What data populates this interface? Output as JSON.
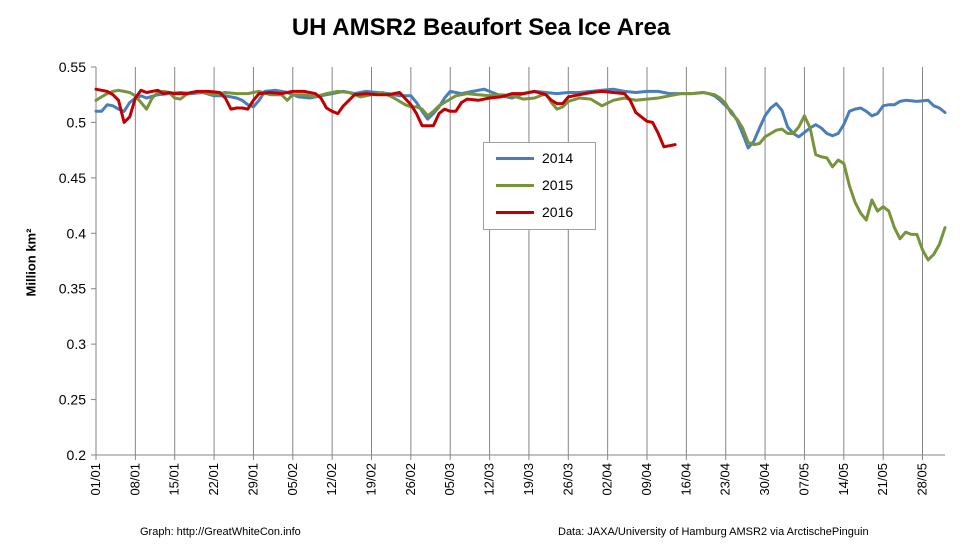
{
  "chart_data": {
    "type": "line",
    "title": "UH AMSR2 Beaufort Sea Ice Area",
    "ylabel": "Million km²",
    "xlabel": "",
    "ylim": [
      0.2,
      0.55
    ],
    "y_ticks": [
      "0.2",
      "0.25",
      "0.3",
      "0.35",
      "0.4",
      "0.45",
      "0.5",
      "0.55"
    ],
    "x_day_range": [
      1,
      152
    ],
    "x_ticks": [
      {
        "day": 1,
        "label": "01/01"
      },
      {
        "day": 8,
        "label": "08/01"
      },
      {
        "day": 15,
        "label": "15/01"
      },
      {
        "day": 22,
        "label": "22/01"
      },
      {
        "day": 29,
        "label": "29/01"
      },
      {
        "day": 36,
        "label": "05/02"
      },
      {
        "day": 43,
        "label": "12/02"
      },
      {
        "day": 50,
        "label": "19/02"
      },
      {
        "day": 57,
        "label": "26/02"
      },
      {
        "day": 64,
        "label": "05/03"
      },
      {
        "day": 71,
        "label": "12/03"
      },
      {
        "day": 78,
        "label": "19/03"
      },
      {
        "day": 85,
        "label": "26/03"
      },
      {
        "day": 92,
        "label": "02/04"
      },
      {
        "day": 99,
        "label": "09/04"
      },
      {
        "day": 106,
        "label": "16/04"
      },
      {
        "day": 113,
        "label": "23/04"
      },
      {
        "day": 120,
        "label": "30/04"
      },
      {
        "day": 127,
        "label": "07/05"
      },
      {
        "day": 134,
        "label": "14/05"
      },
      {
        "day": 141,
        "label": "21/05"
      },
      {
        "day": 148,
        "label": "28/05"
      }
    ],
    "grid": "vertical",
    "legend_position": "center",
    "series": [
      {
        "name": "2014",
        "color": "#4a7ebb",
        "points": [
          [
            1,
            0.51
          ],
          [
            2,
            0.51
          ],
          [
            3,
            0.516
          ],
          [
            4,
            0.515
          ],
          [
            5,
            0.512
          ],
          [
            6,
            0.51
          ],
          [
            7,
            0.518
          ],
          [
            8,
            0.522
          ],
          [
            9,
            0.524
          ],
          [
            10,
            0.522
          ],
          [
            12,
            0.525
          ],
          [
            14,
            0.526
          ],
          [
            16,
            0.527
          ],
          [
            18,
            0.526
          ],
          [
            20,
            0.527
          ],
          [
            22,
            0.524
          ],
          [
            24,
            0.524
          ],
          [
            26,
            0.522
          ],
          [
            27,
            0.52
          ],
          [
            28,
            0.516
          ],
          [
            29,
            0.514
          ],
          [
            30,
            0.52
          ],
          [
            31,
            0.528
          ],
          [
            33,
            0.529
          ],
          [
            35,
            0.527
          ],
          [
            37,
            0.523
          ],
          [
            39,
            0.522
          ],
          [
            41,
            0.524
          ],
          [
            43,
            0.526
          ],
          [
            45,
            0.528
          ],
          [
            47,
            0.526
          ],
          [
            49,
            0.528
          ],
          [
            51,
            0.527
          ],
          [
            53,
            0.526
          ],
          [
            55,
            0.524
          ],
          [
            57,
            0.524
          ],
          [
            58,
            0.518
          ],
          [
            59,
            0.51
          ],
          [
            60,
            0.503
          ],
          [
            61,
            0.508
          ],
          [
            62,
            0.514
          ],
          [
            63,
            0.522
          ],
          [
            64,
            0.528
          ],
          [
            66,
            0.526
          ],
          [
            68,
            0.528
          ],
          [
            70,
            0.53
          ],
          [
            71,
            0.528
          ],
          [
            73,
            0.524
          ],
          [
            75,
            0.522
          ],
          [
            77,
            0.526
          ],
          [
            79,
            0.528
          ],
          [
            81,
            0.527
          ],
          [
            83,
            0.526
          ],
          [
            85,
            0.527
          ],
          [
            87,
            0.527
          ],
          [
            89,
            0.528
          ],
          [
            91,
            0.529
          ],
          [
            93,
            0.53
          ],
          [
            95,
            0.528
          ],
          [
            97,
            0.527
          ],
          [
            99,
            0.528
          ],
          [
            101,
            0.528
          ],
          [
            103,
            0.526
          ],
          [
            105,
            0.526
          ],
          [
            107,
            0.526
          ],
          [
            109,
            0.527
          ],
          [
            110,
            0.526
          ],
          [
            111,
            0.524
          ],
          [
            112,
            0.52
          ],
          [
            113,
            0.515
          ],
          [
            114,
            0.51
          ],
          [
            115,
            0.502
          ],
          [
            116,
            0.49
          ],
          [
            117,
            0.477
          ],
          [
            118,
            0.483
          ],
          [
            119,
            0.495
          ],
          [
            120,
            0.506
          ],
          [
            121,
            0.513
          ],
          [
            122,
            0.517
          ],
          [
            123,
            0.511
          ],
          [
            124,
            0.496
          ],
          [
            125,
            0.49
          ],
          [
            126,
            0.487
          ],
          [
            127,
            0.491
          ],
          [
            128,
            0.495
          ],
          [
            129,
            0.498
          ],
          [
            130,
            0.495
          ],
          [
            131,
            0.49
          ],
          [
            132,
            0.488
          ],
          [
            133,
            0.49
          ],
          [
            134,
            0.498
          ],
          [
            135,
            0.51
          ],
          [
            136,
            0.512
          ],
          [
            137,
            0.513
          ],
          [
            138,
            0.51
          ],
          [
            139,
            0.506
          ],
          [
            140,
            0.508
          ],
          [
            141,
            0.515
          ],
          [
            142,
            0.516
          ],
          [
            143,
            0.516
          ],
          [
            144,
            0.519
          ],
          [
            145,
            0.52
          ],
          [
            147,
            0.519
          ],
          [
            149,
            0.52
          ],
          [
            150,
            0.515
          ],
          [
            151,
            0.513
          ],
          [
            152,
            0.509
          ]
        ]
      },
      {
        "name": "2015",
        "color": "#77933c",
        "points": [
          [
            1,
            0.52
          ],
          [
            2,
            0.523
          ],
          [
            3,
            0.526
          ],
          [
            4,
            0.528
          ],
          [
            5,
            0.529
          ],
          [
            6,
            0.528
          ],
          [
            7,
            0.527
          ],
          [
            8,
            0.524
          ],
          [
            9,
            0.518
          ],
          [
            10,
            0.512
          ],
          [
            11,
            0.522
          ],
          [
            12,
            0.527
          ],
          [
            13,
            0.528
          ],
          [
            14,
            0.527
          ],
          [
            15,
            0.522
          ],
          [
            16,
            0.521
          ],
          [
            17,
            0.525
          ],
          [
            18,
            0.527
          ],
          [
            20,
            0.527
          ],
          [
            22,
            0.525
          ],
          [
            24,
            0.527
          ],
          [
            26,
            0.526
          ],
          [
            28,
            0.526
          ],
          [
            30,
            0.528
          ],
          [
            32,
            0.525
          ],
          [
            34,
            0.525
          ],
          [
            35,
            0.52
          ],
          [
            36,
            0.525
          ],
          [
            38,
            0.525
          ],
          [
            40,
            0.523
          ],
          [
            42,
            0.526
          ],
          [
            44,
            0.528
          ],
          [
            46,
            0.527
          ],
          [
            48,
            0.523
          ],
          [
            50,
            0.525
          ],
          [
            52,
            0.527
          ],
          [
            54,
            0.522
          ],
          [
            56,
            0.516
          ],
          [
            57,
            0.514
          ],
          [
            58,
            0.514
          ],
          [
            59,
            0.512
          ],
          [
            60,
            0.506
          ],
          [
            61,
            0.51
          ],
          [
            62,
            0.515
          ],
          [
            63,
            0.518
          ],
          [
            64,
            0.521
          ],
          [
            65,
            0.524
          ],
          [
            67,
            0.526
          ],
          [
            69,
            0.525
          ],
          [
            71,
            0.524
          ],
          [
            73,
            0.525
          ],
          [
            75,
            0.524
          ],
          [
            77,
            0.521
          ],
          [
            79,
            0.522
          ],
          [
            81,
            0.526
          ],
          [
            82,
            0.518
          ],
          [
            83,
            0.512
          ],
          [
            84,
            0.514
          ],
          [
            85,
            0.519
          ],
          [
            87,
            0.522
          ],
          [
            89,
            0.521
          ],
          [
            91,
            0.515
          ],
          [
            93,
            0.52
          ],
          [
            95,
            0.522
          ],
          [
            97,
            0.52
          ],
          [
            99,
            0.521
          ],
          [
            101,
            0.522
          ],
          [
            103,
            0.524
          ],
          [
            105,
            0.526
          ],
          [
            107,
            0.526
          ],
          [
            109,
            0.527
          ],
          [
            111,
            0.525
          ],
          [
            112,
            0.522
          ],
          [
            113,
            0.517
          ],
          [
            114,
            0.508
          ],
          [
            115,
            0.503
          ],
          [
            116,
            0.495
          ],
          [
            117,
            0.482
          ],
          [
            118,
            0.48
          ],
          [
            119,
            0.481
          ],
          [
            120,
            0.487
          ],
          [
            121,
            0.49
          ],
          [
            122,
            0.493
          ],
          [
            123,
            0.494
          ],
          [
            124,
            0.49
          ],
          [
            125,
            0.49
          ],
          [
            126,
            0.496
          ],
          [
            127,
            0.506
          ],
          [
            128,
            0.495
          ],
          [
            129,
            0.471
          ],
          [
            130,
            0.469
          ],
          [
            131,
            0.468
          ],
          [
            132,
            0.46
          ],
          [
            133,
            0.466
          ],
          [
            134,
            0.463
          ],
          [
            135,
            0.443
          ],
          [
            136,
            0.428
          ],
          [
            137,
            0.418
          ],
          [
            138,
            0.412
          ],
          [
            139,
            0.43
          ],
          [
            140,
            0.42
          ],
          [
            141,
            0.424
          ],
          [
            142,
            0.42
          ],
          [
            143,
            0.405
          ],
          [
            144,
            0.395
          ],
          [
            145,
            0.401
          ],
          [
            146,
            0.399
          ],
          [
            147,
            0.399
          ],
          [
            148,
            0.385
          ],
          [
            149,
            0.376
          ],
          [
            150,
            0.381
          ],
          [
            151,
            0.39
          ],
          [
            152,
            0.405
          ]
        ]
      },
      {
        "name": "2016",
        "color": "#c00000",
        "points": [
          [
            1,
            0.53
          ],
          [
            2,
            0.529
          ],
          [
            3,
            0.528
          ],
          [
            4,
            0.525
          ],
          [
            5,
            0.52
          ],
          [
            6,
            0.5
          ],
          [
            7,
            0.505
          ],
          [
            8,
            0.522
          ],
          [
            9,
            0.529
          ],
          [
            10,
            0.527
          ],
          [
            11,
            0.528
          ],
          [
            12,
            0.529
          ],
          [
            13,
            0.526
          ],
          [
            14,
            0.527
          ],
          [
            15,
            0.526
          ],
          [
            17,
            0.526
          ],
          [
            19,
            0.528
          ],
          [
            21,
            0.528
          ],
          [
            23,
            0.527
          ],
          [
            24,
            0.522
          ],
          [
            25,
            0.512
          ],
          [
            26,
            0.513
          ],
          [
            27,
            0.513
          ],
          [
            28,
            0.512
          ],
          [
            29,
            0.52
          ],
          [
            30,
            0.526
          ],
          [
            32,
            0.527
          ],
          [
            34,
            0.526
          ],
          [
            36,
            0.528
          ],
          [
            38,
            0.528
          ],
          [
            40,
            0.526
          ],
          [
            41,
            0.522
          ],
          [
            42,
            0.513
          ],
          [
            43,
            0.51
          ],
          [
            44,
            0.508
          ],
          [
            45,
            0.515
          ],
          [
            46,
            0.52
          ],
          [
            47,
            0.525
          ],
          [
            49,
            0.526
          ],
          [
            51,
            0.525
          ],
          [
            53,
            0.525
          ],
          [
            55,
            0.527
          ],
          [
            57,
            0.516
          ],
          [
            58,
            0.508
          ],
          [
            59,
            0.497
          ],
          [
            61,
            0.497
          ],
          [
            62,
            0.508
          ],
          [
            63,
            0.512
          ],
          [
            64,
            0.51
          ],
          [
            65,
            0.51
          ],
          [
            66,
            0.518
          ],
          [
            67,
            0.521
          ],
          [
            69,
            0.52
          ],
          [
            71,
            0.522
          ],
          [
            73,
            0.523
          ],
          [
            75,
            0.526
          ],
          [
            77,
            0.526
          ],
          [
            79,
            0.528
          ],
          [
            81,
            0.525
          ],
          [
            82,
            0.52
          ],
          [
            83,
            0.517
          ],
          [
            84,
            0.517
          ],
          [
            85,
            0.523
          ],
          [
            87,
            0.525
          ],
          [
            89,
            0.527
          ],
          [
            91,
            0.528
          ],
          [
            93,
            0.527
          ],
          [
            95,
            0.526
          ],
          [
            96,
            0.52
          ],
          [
            97,
            0.509
          ],
          [
            98,
            0.505
          ],
          [
            99,
            0.501
          ],
          [
            100,
            0.5
          ],
          [
            101,
            0.49
          ],
          [
            102,
            0.478
          ],
          [
            104,
            0.48
          ]
        ]
      }
    ]
  },
  "footer": {
    "left": "Graph: http://GreatWhiteCon.info",
    "right": "Data: JAXA/University of Hamburg AMSR2 via  ArctischePinguin"
  }
}
